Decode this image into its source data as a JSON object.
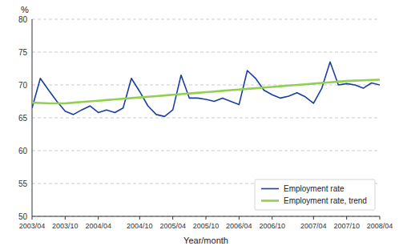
{
  "chart_data": {
    "type": "line",
    "xlabel": "Year/month",
    "ylabel": "%",
    "categories": [
      "2003/04",
      null,
      null,
      null,
      "2003/10",
      null,
      null,
      null,
      "2004/04",
      null,
      null,
      null,
      null,
      "2004/10",
      null,
      null,
      null,
      "2005/04",
      null,
      null,
      null,
      "2005/10",
      null,
      null,
      null,
      "2006/04",
      null,
      null,
      null,
      "2006/10",
      null,
      null,
      null,
      null,
      "2007/04",
      null,
      null,
      null,
      "2007/10",
      null,
      null,
      null,
      "2008/04"
    ],
    "series": [
      {
        "name": "Employment rate",
        "color": "#1a3fa3",
        "values": [
          66.5,
          71.0,
          69.2,
          67.5,
          66.0,
          65.5,
          66.2,
          66.8,
          65.8,
          66.2,
          65.8,
          66.5,
          71.0,
          69.0,
          66.8,
          65.5,
          65.2,
          66.2,
          71.5,
          68.0,
          68.0,
          67.8,
          67.5,
          68.0,
          67.5,
          67.0,
          72.2,
          71.0,
          69.2,
          68.5,
          68.0,
          68.3,
          68.8,
          68.2,
          67.2,
          69.5,
          73.5,
          70.0,
          70.2,
          70.0,
          69.5,
          70.3,
          70.0
        ]
      },
      {
        "name": "Employment rate, trend",
        "color": "#92d050",
        "values": [
          67.3,
          67.25,
          67.2,
          67.2,
          67.2,
          67.3,
          67.4,
          67.5,
          67.6,
          67.7,
          67.8,
          67.9,
          68.0,
          68.1,
          68.2,
          68.3,
          68.4,
          68.5,
          68.6,
          68.7,
          68.8,
          68.9,
          69.0,
          69.1,
          69.2,
          69.3,
          69.4,
          69.5,
          69.6,
          69.7,
          69.8,
          69.9,
          70.0,
          70.1,
          70.2,
          70.3,
          70.4,
          70.5,
          70.6,
          70.65,
          70.7,
          70.75,
          70.8
        ]
      }
    ],
    "ylim": [
      50,
      80
    ],
    "yticks": [
      50,
      55,
      60,
      65,
      70,
      75,
      80
    ],
    "grid": true,
    "legend": "lower-right"
  }
}
